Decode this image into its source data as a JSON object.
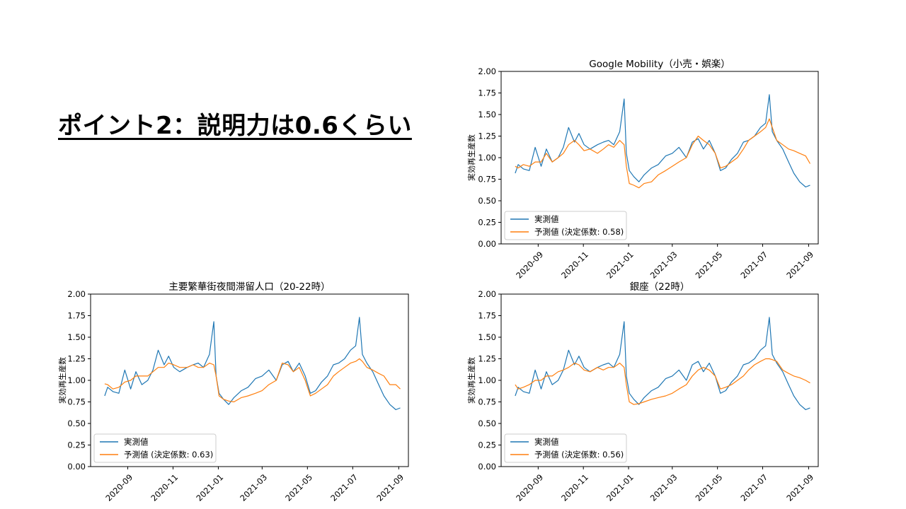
{
  "slide": {
    "title": "ポイント2：説明力は0.6くらい"
  },
  "chart_data": [
    {
      "type": "line",
      "title": "Google Mobility（小売・娯楽）",
      "xlabel": "",
      "ylabel": "実効再生産数",
      "ylim": [
        0,
        2
      ],
      "yticks": [
        "0.00",
        "0.25",
        "0.50",
        "0.75",
        "1.00",
        "1.25",
        "1.50",
        "1.75",
        "2.00"
      ],
      "xticks": [
        "2020-09",
        "2020-11",
        "2021-01",
        "2021-03",
        "2021-05",
        "2021-07",
        "2021-09"
      ],
      "legend_position": "lower-left",
      "series": [
        {
          "name": "実測値",
          "color": "#1f77b4",
          "x": [
            "2020-08-01",
            "2020-08-05",
            "2020-08-12",
            "2020-08-20",
            "2020-08-28",
            "2020-09-05",
            "2020-09-12",
            "2020-09-20",
            "2020-09-28",
            "2020-10-05",
            "2020-10-12",
            "2020-10-20",
            "2020-10-26",
            "2020-11-02",
            "2020-11-10",
            "2020-11-20",
            "2020-11-28",
            "2020-12-05",
            "2020-12-12",
            "2020-12-20",
            "2020-12-26",
            "2020-12-29",
            "2021-01-02",
            "2021-01-08",
            "2021-01-15",
            "2021-01-22",
            "2021-02-01",
            "2021-02-10",
            "2021-02-20",
            "2021-03-01",
            "2021-03-10",
            "2021-03-20",
            "2021-03-28",
            "2021-04-05",
            "2021-04-12",
            "2021-04-20",
            "2021-04-28",
            "2021-05-05",
            "2021-05-12",
            "2021-05-20",
            "2021-05-28",
            "2021-06-05",
            "2021-06-12",
            "2021-06-20",
            "2021-06-28",
            "2021-07-05",
            "2021-07-10",
            "2021-07-14",
            "2021-07-20",
            "2021-07-28",
            "2021-08-05",
            "2021-08-12",
            "2021-08-20",
            "2021-08-28",
            "2021-09-03"
          ],
          "values": [
            0.82,
            0.92,
            0.87,
            0.85,
            1.12,
            0.9,
            1.1,
            0.95,
            1.0,
            1.12,
            1.35,
            1.18,
            1.28,
            1.15,
            1.1,
            1.15,
            1.18,
            1.2,
            1.15,
            1.3,
            1.68,
            1.05,
            0.85,
            0.78,
            0.72,
            0.8,
            0.88,
            0.92,
            1.02,
            1.05,
            1.12,
            1.0,
            1.18,
            1.22,
            1.1,
            1.2,
            1.05,
            0.85,
            0.88,
            0.98,
            1.05,
            1.18,
            1.2,
            1.25,
            1.35,
            1.4,
            1.73,
            1.3,
            1.2,
            1.1,
            0.95,
            0.82,
            0.72,
            0.66,
            0.68
          ]
        },
        {
          "name": "予測値 (決定係数: 0.58)",
          "color": "#ff7f0e",
          "x": [
            "2020-08-01",
            "2020-08-05",
            "2020-08-12",
            "2020-08-20",
            "2020-08-28",
            "2020-09-05",
            "2020-09-12",
            "2020-09-20",
            "2020-09-28",
            "2020-10-05",
            "2020-10-12",
            "2020-10-20",
            "2020-10-26",
            "2020-11-02",
            "2020-11-10",
            "2020-11-20",
            "2020-11-28",
            "2020-12-05",
            "2020-12-12",
            "2020-12-20",
            "2020-12-26",
            "2020-12-29",
            "2021-01-02",
            "2021-01-08",
            "2021-01-15",
            "2021-01-22",
            "2021-02-01",
            "2021-02-10",
            "2021-02-20",
            "2021-03-01",
            "2021-03-10",
            "2021-03-20",
            "2021-03-28",
            "2021-04-05",
            "2021-04-12",
            "2021-04-20",
            "2021-04-28",
            "2021-05-05",
            "2021-05-12",
            "2021-05-20",
            "2021-05-28",
            "2021-06-05",
            "2021-06-12",
            "2021-06-20",
            "2021-06-28",
            "2021-07-05",
            "2021-07-10",
            "2021-07-14",
            "2021-07-20",
            "2021-07-28",
            "2021-08-05",
            "2021-08-12",
            "2021-08-20",
            "2021-08-28",
            "2021-09-03"
          ],
          "values": [
            0.9,
            0.88,
            0.92,
            0.9,
            0.95,
            0.95,
            1.05,
            0.95,
            1.0,
            1.05,
            1.15,
            1.2,
            1.15,
            1.08,
            1.1,
            1.05,
            1.1,
            1.15,
            1.12,
            1.2,
            1.15,
            0.9,
            0.7,
            0.68,
            0.65,
            0.7,
            0.72,
            0.8,
            0.85,
            0.9,
            0.95,
            1.0,
            1.15,
            1.25,
            1.2,
            1.15,
            1.05,
            0.88,
            0.9,
            0.95,
            1.0,
            1.1,
            1.2,
            1.25,
            1.3,
            1.35,
            1.45,
            1.35,
            1.2,
            1.15,
            1.1,
            1.08,
            1.05,
            1.02,
            0.93
          ]
        }
      ]
    },
    {
      "type": "line",
      "title": "主要繁華街夜間滞留人口（20-22時）",
      "xlabel": "",
      "ylabel": "実効再生産数",
      "ylim": [
        0,
        2
      ],
      "yticks": [
        "0.00",
        "0.25",
        "0.50",
        "0.75",
        "1.00",
        "1.25",
        "1.50",
        "1.75",
        "2.00"
      ],
      "xticks": [
        "2020-09",
        "2020-11",
        "2021-01",
        "2021-03",
        "2021-05",
        "2021-07",
        "2021-09"
      ],
      "legend_position": "lower-left",
      "series": [
        {
          "name": "実測値",
          "color": "#1f77b4",
          "x": [
            "2020-08-01",
            "2020-08-05",
            "2020-08-12",
            "2020-08-20",
            "2020-08-28",
            "2020-09-05",
            "2020-09-12",
            "2020-09-20",
            "2020-09-28",
            "2020-10-05",
            "2020-10-12",
            "2020-10-20",
            "2020-10-26",
            "2020-11-02",
            "2020-11-10",
            "2020-11-20",
            "2020-11-28",
            "2020-12-05",
            "2020-12-12",
            "2020-12-20",
            "2020-12-26",
            "2020-12-29",
            "2021-01-02",
            "2021-01-08",
            "2021-01-15",
            "2021-01-22",
            "2021-02-01",
            "2021-02-10",
            "2021-02-20",
            "2021-03-01",
            "2021-03-10",
            "2021-03-20",
            "2021-03-28",
            "2021-04-05",
            "2021-04-12",
            "2021-04-20",
            "2021-04-28",
            "2021-05-05",
            "2021-05-12",
            "2021-05-20",
            "2021-05-28",
            "2021-06-05",
            "2021-06-12",
            "2021-06-20",
            "2021-06-28",
            "2021-07-05",
            "2021-07-10",
            "2021-07-14",
            "2021-07-20",
            "2021-07-28",
            "2021-08-05",
            "2021-08-12",
            "2021-08-20",
            "2021-08-28",
            "2021-09-03"
          ],
          "values": [
            0.82,
            0.92,
            0.87,
            0.85,
            1.12,
            0.9,
            1.1,
            0.95,
            1.0,
            1.12,
            1.35,
            1.18,
            1.28,
            1.15,
            1.1,
            1.15,
            1.18,
            1.2,
            1.15,
            1.3,
            1.68,
            1.05,
            0.85,
            0.78,
            0.72,
            0.8,
            0.88,
            0.92,
            1.02,
            1.05,
            1.12,
            1.0,
            1.18,
            1.22,
            1.1,
            1.2,
            1.05,
            0.85,
            0.88,
            0.98,
            1.05,
            1.18,
            1.2,
            1.25,
            1.35,
            1.4,
            1.73,
            1.3,
            1.2,
            1.1,
            0.95,
            0.82,
            0.72,
            0.66,
            0.68
          ]
        },
        {
          "name": "予測値 (決定係数: 0.63)",
          "color": "#ff7f0e",
          "x": [
            "2020-08-01",
            "2020-08-05",
            "2020-08-12",
            "2020-08-20",
            "2020-08-28",
            "2020-09-05",
            "2020-09-12",
            "2020-09-20",
            "2020-09-28",
            "2020-10-05",
            "2020-10-12",
            "2020-10-20",
            "2020-10-26",
            "2020-11-02",
            "2020-11-10",
            "2020-11-20",
            "2020-11-28",
            "2020-12-05",
            "2020-12-12",
            "2020-12-20",
            "2020-12-26",
            "2020-12-29",
            "2021-01-02",
            "2021-01-08",
            "2021-01-15",
            "2021-01-22",
            "2021-02-01",
            "2021-02-10",
            "2021-02-20",
            "2021-03-01",
            "2021-03-10",
            "2021-03-20",
            "2021-03-28",
            "2021-04-05",
            "2021-04-12",
            "2021-04-20",
            "2021-04-28",
            "2021-05-05",
            "2021-05-12",
            "2021-05-20",
            "2021-05-28",
            "2021-06-05",
            "2021-06-12",
            "2021-06-20",
            "2021-06-28",
            "2021-07-05",
            "2021-07-10",
            "2021-07-14",
            "2021-07-20",
            "2021-07-28",
            "2021-08-05",
            "2021-08-12",
            "2021-08-20",
            "2021-08-28",
            "2021-09-03"
          ],
          "values": [
            0.96,
            0.95,
            0.9,
            0.92,
            0.98,
            1.0,
            1.05,
            1.05,
            1.05,
            1.1,
            1.15,
            1.15,
            1.2,
            1.18,
            1.15,
            1.15,
            1.18,
            1.15,
            1.15,
            1.2,
            1.18,
            1.05,
            0.82,
            0.78,
            0.76,
            0.75,
            0.8,
            0.82,
            0.85,
            0.88,
            0.95,
            1.0,
            1.2,
            1.18,
            1.1,
            1.15,
            1.0,
            0.82,
            0.85,
            0.9,
            0.95,
            1.05,
            1.1,
            1.15,
            1.2,
            1.22,
            1.25,
            1.22,
            1.15,
            1.12,
            1.08,
            1.05,
            0.95,
            0.95,
            0.9
          ]
        }
      ]
    },
    {
      "type": "line",
      "title": "銀座（22時）",
      "xlabel": "",
      "ylabel": "実効再生産数",
      "ylim": [
        0,
        2
      ],
      "yticks": [
        "0.00",
        "0.25",
        "0.50",
        "0.75",
        "1.00",
        "1.25",
        "1.50",
        "1.75",
        "2.00"
      ],
      "xticks": [
        "2020-09",
        "2020-11",
        "2021-01",
        "2021-03",
        "2021-05",
        "2021-07",
        "2021-09"
      ],
      "legend_position": "lower-left",
      "series": [
        {
          "name": "実測値",
          "color": "#1f77b4",
          "x": [
            "2020-08-01",
            "2020-08-05",
            "2020-08-12",
            "2020-08-20",
            "2020-08-28",
            "2020-09-05",
            "2020-09-12",
            "2020-09-20",
            "2020-09-28",
            "2020-10-05",
            "2020-10-12",
            "2020-10-20",
            "2020-10-26",
            "2020-11-02",
            "2020-11-10",
            "2020-11-20",
            "2020-11-28",
            "2020-12-05",
            "2020-12-12",
            "2020-12-20",
            "2020-12-26",
            "2020-12-29",
            "2021-01-02",
            "2021-01-08",
            "2021-01-15",
            "2021-01-22",
            "2021-02-01",
            "2021-02-10",
            "2021-02-20",
            "2021-03-01",
            "2021-03-10",
            "2021-03-20",
            "2021-03-28",
            "2021-04-05",
            "2021-04-12",
            "2021-04-20",
            "2021-04-28",
            "2021-05-05",
            "2021-05-12",
            "2021-05-20",
            "2021-05-28",
            "2021-06-05",
            "2021-06-12",
            "2021-06-20",
            "2021-06-28",
            "2021-07-05",
            "2021-07-10",
            "2021-07-14",
            "2021-07-20",
            "2021-07-28",
            "2021-08-05",
            "2021-08-12",
            "2021-08-20",
            "2021-08-28",
            "2021-09-03"
          ],
          "values": [
            0.82,
            0.92,
            0.87,
            0.85,
            1.12,
            0.9,
            1.1,
            0.95,
            1.0,
            1.12,
            1.35,
            1.18,
            1.28,
            1.15,
            1.1,
            1.15,
            1.18,
            1.2,
            1.15,
            1.3,
            1.68,
            1.05,
            0.85,
            0.78,
            0.72,
            0.8,
            0.88,
            0.92,
            1.02,
            1.05,
            1.12,
            1.0,
            1.18,
            1.22,
            1.1,
            1.2,
            1.05,
            0.85,
            0.88,
            0.98,
            1.05,
            1.18,
            1.2,
            1.25,
            1.35,
            1.4,
            1.73,
            1.3,
            1.2,
            1.1,
            0.95,
            0.82,
            0.72,
            0.66,
            0.68
          ]
        },
        {
          "name": "予測値 (決定係数: 0.56)",
          "color": "#ff7f0e",
          "x": [
            "2020-08-01",
            "2020-08-05",
            "2020-08-12",
            "2020-08-20",
            "2020-08-28",
            "2020-09-05",
            "2020-09-12",
            "2020-09-20",
            "2020-09-28",
            "2020-10-05",
            "2020-10-12",
            "2020-10-20",
            "2020-10-26",
            "2020-11-02",
            "2020-11-10",
            "2020-11-20",
            "2020-11-28",
            "2020-12-05",
            "2020-12-12",
            "2020-12-20",
            "2020-12-26",
            "2020-12-29",
            "2021-01-02",
            "2021-01-08",
            "2021-01-15",
            "2021-01-22",
            "2021-02-01",
            "2021-02-10",
            "2021-02-20",
            "2021-03-01",
            "2021-03-10",
            "2021-03-20",
            "2021-03-28",
            "2021-04-05",
            "2021-04-12",
            "2021-04-20",
            "2021-04-28",
            "2021-05-05",
            "2021-05-12",
            "2021-05-20",
            "2021-05-28",
            "2021-06-05",
            "2021-06-12",
            "2021-06-20",
            "2021-06-28",
            "2021-07-05",
            "2021-07-10",
            "2021-07-14",
            "2021-07-20",
            "2021-07-28",
            "2021-08-05",
            "2021-08-12",
            "2021-08-20",
            "2021-08-28",
            "2021-09-03"
          ],
          "values": [
            0.95,
            0.9,
            0.92,
            0.95,
            1.0,
            1.0,
            1.05,
            1.05,
            1.1,
            1.12,
            1.15,
            1.2,
            1.18,
            1.12,
            1.1,
            1.15,
            1.12,
            1.15,
            1.15,
            1.2,
            1.15,
            0.95,
            0.75,
            0.72,
            0.73,
            0.75,
            0.78,
            0.8,
            0.82,
            0.85,
            0.9,
            0.95,
            1.05,
            1.12,
            1.15,
            1.12,
            1.05,
            0.9,
            0.92,
            0.95,
            1.0,
            1.05,
            1.12,
            1.18,
            1.22,
            1.25,
            1.25,
            1.24,
            1.22,
            1.12,
            1.08,
            1.05,
            1.03,
            1.0,
            0.97
          ]
        }
      ]
    }
  ]
}
